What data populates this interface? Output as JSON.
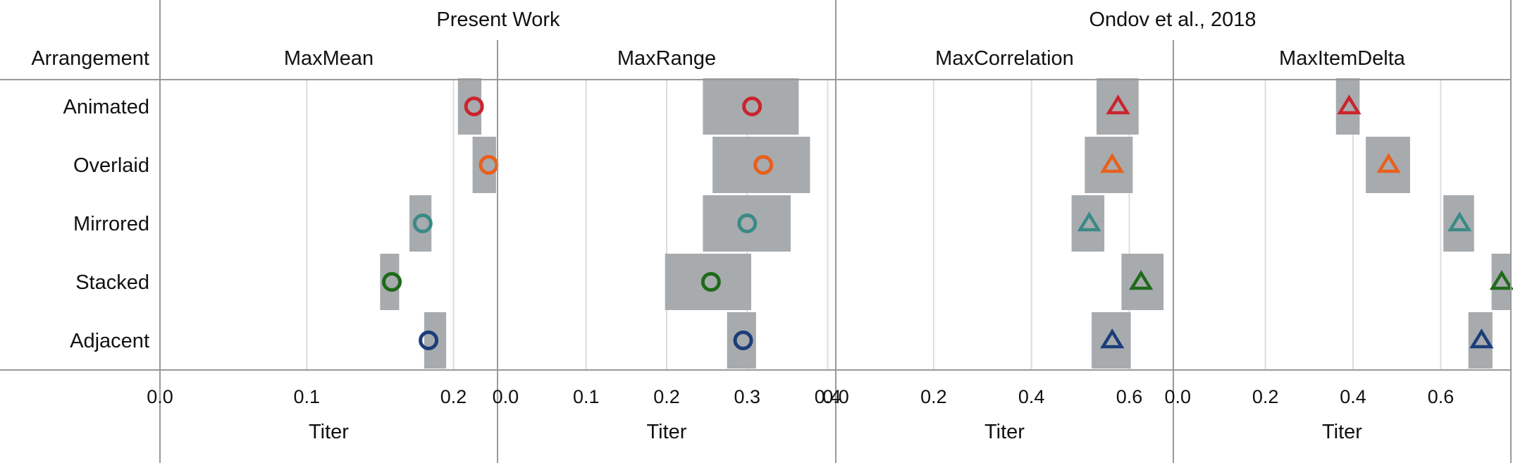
{
  "header": {
    "row_label": "Arrangement",
    "groups": [
      "Present Work",
      "Ondov et al., 2018"
    ]
  },
  "arrangements": [
    "Animated",
    "Overlaid",
    "Mirrored",
    "Stacked",
    "Adjacent"
  ],
  "colors": {
    "Animated": "#c9252e",
    "Overlaid": "#e8601c",
    "Mirrored": "#3a8a86",
    "Stacked": "#1f6a1a",
    "Adjacent": "#1c3d7a",
    "ci_band": "#a8abae",
    "grid": "#dddddd",
    "frame": "#999999"
  },
  "chart_data": [
    {
      "type": "scatter",
      "group": "Present Work",
      "title": "MaxMean",
      "xlabel": "Titer",
      "xlim": [
        0.0,
        0.23
      ],
      "ticks": [
        0.0,
        0.1,
        0.2
      ],
      "tick_labels": [
        "0.0",
        "0.1",
        "0.2"
      ],
      "marker": "circle",
      "points": [
        {
          "arrangement": "Animated",
          "value": 0.214,
          "ci": [
            0.203,
            0.219
          ]
        },
        {
          "arrangement": "Overlaid",
          "value": 0.224,
          "ci": [
            0.213,
            0.229
          ]
        },
        {
          "arrangement": "Mirrored",
          "value": 0.179,
          "ci": [
            0.17,
            0.185
          ]
        },
        {
          "arrangement": "Stacked",
          "value": 0.158,
          "ci": [
            0.15,
            0.163
          ]
        },
        {
          "arrangement": "Adjacent",
          "value": 0.183,
          "ci": [
            0.18,
            0.195
          ]
        }
      ]
    },
    {
      "type": "scatter",
      "group": "Present Work",
      "title": "MaxRange",
      "xlabel": "Titer",
      "xlim": [
        -0.01,
        0.41
      ],
      "ticks": [
        0.0,
        0.1,
        0.2,
        0.3,
        0.4
      ],
      "tick_labels": [
        "0.0",
        "0.1",
        "0.2",
        "0.3",
        "0.4"
      ],
      "marker": "circle",
      "points": [
        {
          "arrangement": "Animated",
          "value": 0.306,
          "ci": [
            0.245,
            0.364
          ]
        },
        {
          "arrangement": "Overlaid",
          "value": 0.32,
          "ci": [
            0.257,
            0.378
          ]
        },
        {
          "arrangement": "Mirrored",
          "value": 0.3,
          "ci": [
            0.245,
            0.354
          ]
        },
        {
          "arrangement": "Stacked",
          "value": 0.255,
          "ci": [
            0.198,
            0.305
          ]
        },
        {
          "arrangement": "Adjacent",
          "value": 0.295,
          "ci": [
            0.275,
            0.311
          ]
        }
      ]
    },
    {
      "type": "scatter",
      "group": "Ondov et al., 2018",
      "title": "MaxCorrelation",
      "xlabel": "Titer",
      "xlim": [
        0.0,
        0.69
      ],
      "ticks": [
        0.0,
        0.2,
        0.4,
        0.6
      ],
      "tick_labels": [
        "0.0",
        "0.2",
        "0.4",
        "0.6"
      ],
      "marker": "triangle",
      "points": [
        {
          "arrangement": "Animated",
          "value": 0.577,
          "ci": [
            0.533,
            0.619
          ]
        },
        {
          "arrangement": "Overlaid",
          "value": 0.565,
          "ci": [
            0.509,
            0.607
          ]
        },
        {
          "arrangement": "Mirrored",
          "value": 0.518,
          "ci": [
            0.482,
            0.549
          ]
        },
        {
          "arrangement": "Stacked",
          "value": 0.624,
          "ci": [
            0.584,
            0.67
          ]
        },
        {
          "arrangement": "Adjacent",
          "value": 0.565,
          "ci": [
            0.523,
            0.603
          ]
        }
      ]
    },
    {
      "type": "scatter",
      "group": "Ondov et al., 2018",
      "title": "MaxItemDelta",
      "xlabel": "Titer",
      "xlim": [
        -0.01,
        0.76
      ],
      "ticks": [
        0.0,
        0.2,
        0.4,
        0.6
      ],
      "tick_labels": [
        "0.0",
        "0.2",
        "0.4",
        "0.6"
      ],
      "marker": "triangle",
      "points": [
        {
          "arrangement": "Animated",
          "value": 0.391,
          "ci": [
            0.361,
            0.415
          ]
        },
        {
          "arrangement": "Overlaid",
          "value": 0.481,
          "ci": [
            0.429,
            0.53
          ]
        },
        {
          "arrangement": "Mirrored",
          "value": 0.643,
          "ci": [
            0.606,
            0.676
          ]
        },
        {
          "arrangement": "Stacked",
          "value": 0.739,
          "ci": [
            0.716,
            0.759
          ]
        },
        {
          "arrangement": "Adjacent",
          "value": 0.693,
          "ci": [
            0.663,
            0.718
          ]
        }
      ]
    }
  ]
}
